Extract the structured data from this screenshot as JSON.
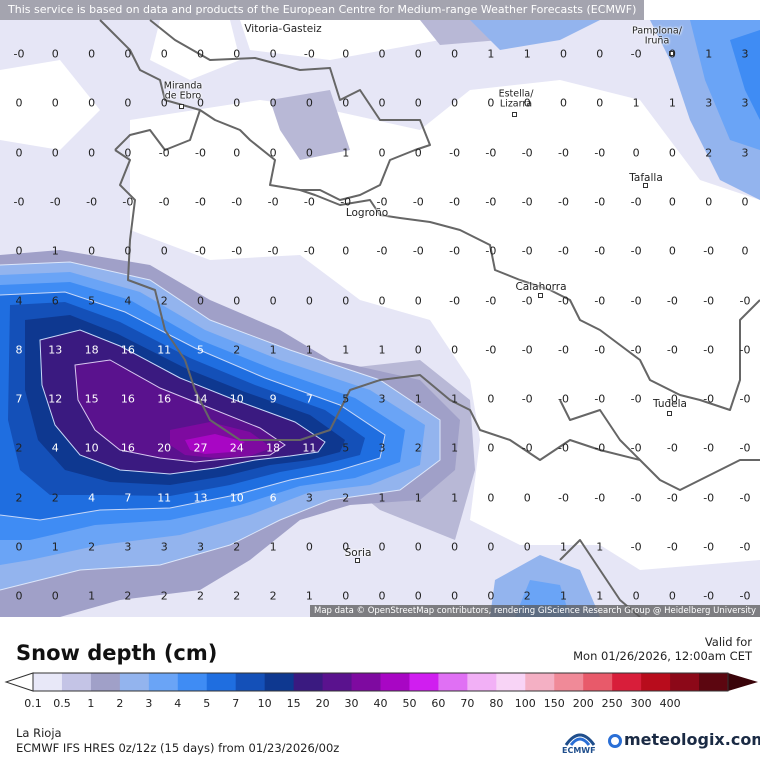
{
  "header": {
    "notice": "This service is based on data and products of the European Centre for Medium-range Weather Forecasts (ECMWF)"
  },
  "map": {
    "attribution": "Map data © OpenStreetMap contributors, rendering GIScience Research Group @ Heidelberg University",
    "cities": [
      {
        "name": "Vitoria-Gasteiz"
      },
      {
        "name": "Pamplona/\nIruña"
      },
      {
        "name": "Miranda\nde Ebro"
      },
      {
        "name": "Estella/\nLizarra"
      },
      {
        "name": "Tafalla"
      },
      {
        "name": "Logroño"
      },
      {
        "name": "Calahorra"
      },
      {
        "name": "Tudela"
      },
      {
        "name": "Soria"
      }
    ],
    "grid_values": [
      [
        "-0",
        "0",
        "0",
        "0",
        "0",
        "0",
        "0",
        "0",
        "-0",
        "0",
        "0",
        "0",
        "0",
        "1",
        "1",
        "0",
        "0",
        "-0",
        "0",
        "1",
        "3"
      ],
      [
        "0",
        "0",
        "0",
        "0",
        "0",
        "0",
        "0",
        "0",
        "0",
        "0",
        "0",
        "0",
        "0",
        "0",
        "0",
        "0",
        "0",
        "1",
        "1",
        "3",
        "3"
      ],
      [
        "0",
        "0",
        "0",
        "0",
        "-0",
        "-0",
        "0",
        "0",
        "0",
        "1",
        "0",
        "0",
        "-0",
        "-0",
        "-0",
        "-0",
        "-0",
        "0",
        "0",
        "2",
        "3"
      ],
      [
        "-0",
        "-0",
        "-0",
        "-0",
        "-0",
        "-0",
        "-0",
        "-0",
        "-0",
        "-0",
        "-0",
        "-0",
        "-0",
        "-0",
        "-0",
        "-0",
        "-0",
        "-0",
        "0",
        "0",
        "0"
      ],
      [
        "0",
        "1",
        "0",
        "0",
        "0",
        "-0",
        "-0",
        "-0",
        "-0",
        "0",
        "-0",
        "-0",
        "-0",
        "-0",
        "-0",
        "-0",
        "-0",
        "-0",
        "0",
        "-0",
        "0"
      ],
      [
        "4",
        "6",
        "5",
        "4",
        "2",
        "0",
        "0",
        "0",
        "0",
        "0",
        "0",
        "0",
        "-0",
        "-0",
        "-0",
        "-0",
        "-0",
        "-0",
        "-0",
        "-0",
        "-0"
      ],
      [
        "8",
        "13",
        "18",
        "16",
        "11",
        "5",
        "2",
        "1",
        "1",
        "1",
        "1",
        "0",
        "0",
        "-0",
        "-0",
        "-0",
        "-0",
        "-0",
        "-0",
        "-0",
        "-0"
      ],
      [
        "7",
        "12",
        "15",
        "16",
        "16",
        "14",
        "10",
        "9",
        "7",
        "5",
        "3",
        "1",
        "1",
        "0",
        "-0",
        "-0",
        "-0",
        "-0",
        "-0",
        "-0",
        "-0"
      ],
      [
        "2",
        "4",
        "10",
        "16",
        "20",
        "27",
        "24",
        "18",
        "11",
        "5",
        "3",
        "2",
        "1",
        "0",
        "-0",
        "-0",
        "-0",
        "-0",
        "-0",
        "-0",
        "-0"
      ],
      [
        "2",
        "2",
        "4",
        "7",
        "11",
        "13",
        "10",
        "6",
        "3",
        "2",
        "1",
        "1",
        "1",
        "0",
        "0",
        "-0",
        "-0",
        "-0",
        "-0",
        "-0",
        "-0"
      ],
      [
        "0",
        "1",
        "2",
        "3",
        "3",
        "3",
        "2",
        "1",
        "0",
        "0",
        "0",
        "0",
        "0",
        "0",
        "0",
        "1",
        "1",
        "-0",
        "-0",
        "-0",
        "-0"
      ],
      [
        "0",
        "0",
        "1",
        "2",
        "2",
        "2",
        "2",
        "2",
        "1",
        "0",
        "0",
        "0",
        "0",
        "0",
        "2",
        "1",
        "1",
        "0",
        "0",
        "-0",
        "-0"
      ]
    ]
  },
  "legend": {
    "title": "Snow depth (cm)",
    "valid_label": "Valid for",
    "valid_time": "Mon 01/26/2026, 12:00am CET",
    "labels": [
      "0.1",
      "0.5",
      "1",
      "2",
      "3",
      "4",
      "5",
      "7",
      "10",
      "15",
      "20",
      "30",
      "40",
      "50",
      "60",
      "70",
      "80",
      "100",
      "150",
      "200",
      "250",
      "300",
      "400"
    ],
    "colors": [
      "#e8e8f8",
      "#c4c4e6",
      "#a0a0c8",
      "#93b4ee",
      "#6aa4f6",
      "#3f8cf4",
      "#1f6ee0",
      "#1450b8",
      "#0e3890",
      "#3a1a80",
      "#5a128e",
      "#7e0aa0",
      "#a806c4",
      "#d01ef0",
      "#e070f4",
      "#f2b0f6",
      "#f8d4f6",
      "#f4b0c4",
      "#f08a98",
      "#e85a6a",
      "#d81e3a",
      "#b80c1c",
      "#8c0818",
      "#5c0610"
    ]
  },
  "footer": {
    "region": "La Rioja",
    "model": "ECMWF IFS HRES 0z/12z (15 days) from 01/23/2026/00z",
    "ecmwf_label": "ECMWF",
    "brand": "meteologix.com"
  }
}
